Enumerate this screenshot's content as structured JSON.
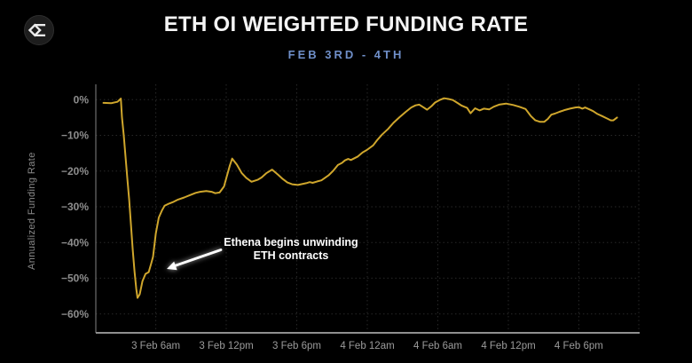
{
  "header": {
    "title": "ETH OI WEIGHTED FUNDING RATE",
    "subtitle": "FEB 3RD - 4TH"
  },
  "annotation": {
    "line1": "Ethena begins unwinding",
    "line2": "ETH contracts"
  },
  "chart_data": {
    "type": "line",
    "title": "ETH OI WEIGHTED FUNDING RATE",
    "subtitle": "FEB 3RD - 4TH",
    "xlabel": "",
    "ylabel": "Annualized Funding Rate",
    "x_unit": "hours since 3 Feb 12am",
    "x_range": [
      0.9,
      47.1
    ],
    "y_range": [
      -65.3,
      4.3
    ],
    "grid": true,
    "legend": false,
    "x_ticks": [
      {
        "value": 6,
        "label": "3 Feb 6am"
      },
      {
        "value": 12,
        "label": "3 Feb 12pm"
      },
      {
        "value": 18,
        "label": "3 Feb 6pm"
      },
      {
        "value": 24,
        "label": "4 Feb 12am"
      },
      {
        "value": 30,
        "label": "4 Feb 6am"
      },
      {
        "value": 36,
        "label": "4 Feb 12pm"
      },
      {
        "value": 42,
        "label": "4 Feb 6pm"
      }
    ],
    "y_ticks": [
      {
        "value": 0,
        "label": "0%"
      },
      {
        "value": -10,
        "label": "−10%"
      },
      {
        "value": -20,
        "label": "−20%"
      },
      {
        "value": -30,
        "label": "−30%"
      },
      {
        "value": -40,
        "label": "−40%"
      },
      {
        "value": -50,
        "label": "−50%"
      },
      {
        "value": -60,
        "label": "−60%"
      }
    ],
    "series": [
      {
        "name": "ETH OI weighted funding rate (annualized %)",
        "color": "#cfa62c",
        "points": [
          [
            1.55,
            -0.9
          ],
          [
            2.2,
            -1.0
          ],
          [
            2.75,
            -0.6
          ],
          [
            3.03,
            0.3
          ],
          [
            3.13,
            -5
          ],
          [
            3.28,
            -10
          ],
          [
            3.43,
            -16
          ],
          [
            3.58,
            -22
          ],
          [
            3.74,
            -28
          ],
          [
            3.89,
            -35
          ],
          [
            4.04,
            -42
          ],
          [
            4.19,
            -48
          ],
          [
            4.34,
            -53
          ],
          [
            4.45,
            -55.5
          ],
          [
            4.64,
            -54.5
          ],
          [
            4.87,
            -50.8
          ],
          [
            5.13,
            -48.8
          ],
          [
            5.4,
            -48.3
          ],
          [
            5.62,
            -45.8
          ],
          [
            5.77,
            -44.0
          ],
          [
            6.0,
            -37.5
          ],
          [
            6.26,
            -33.0
          ],
          [
            6.53,
            -31.0
          ],
          [
            6.75,
            -29.7
          ],
          [
            7.13,
            -29.1
          ],
          [
            7.51,
            -28.6
          ],
          [
            7.89,
            -28.0
          ],
          [
            8.42,
            -27.4
          ],
          [
            8.87,
            -26.8
          ],
          [
            9.4,
            -26.1
          ],
          [
            9.77,
            -25.8
          ],
          [
            10.3,
            -25.6
          ],
          [
            10.75,
            -25.8
          ],
          [
            11.06,
            -26.2
          ],
          [
            11.43,
            -26.0
          ],
          [
            11.81,
            -24.3
          ],
          [
            12.04,
            -21.5
          ],
          [
            12.3,
            -18.5
          ],
          [
            12.5,
            -16.5
          ],
          [
            12.9,
            -18.2
          ],
          [
            13.3,
            -20.5
          ],
          [
            13.7,
            -21.9
          ],
          [
            14.15,
            -23.0
          ],
          [
            14.7,
            -22.4
          ],
          [
            15.0,
            -21.8
          ],
          [
            15.4,
            -20.6
          ],
          [
            15.9,
            -19.6
          ],
          [
            16.4,
            -21.0
          ],
          [
            16.8,
            -22.2
          ],
          [
            17.2,
            -23.2
          ],
          [
            17.6,
            -23.7
          ],
          [
            18.1,
            -23.9
          ],
          [
            18.8,
            -23.4
          ],
          [
            19.1,
            -23.1
          ],
          [
            19.35,
            -23.3
          ],
          [
            19.75,
            -22.9
          ],
          [
            20.1,
            -22.6
          ],
          [
            20.7,
            -21.2
          ],
          [
            21.1,
            -19.9
          ],
          [
            21.5,
            -18.3
          ],
          [
            21.85,
            -17.7
          ],
          [
            22.1,
            -17.0
          ],
          [
            22.38,
            -16.6
          ],
          [
            22.6,
            -16.9
          ],
          [
            23.2,
            -15.9
          ],
          [
            23.6,
            -14.8
          ],
          [
            23.96,
            -14.1
          ],
          [
            24.5,
            -12.8
          ],
          [
            24.87,
            -11.2
          ],
          [
            25.25,
            -9.8
          ],
          [
            25.77,
            -8.2
          ],
          [
            26.23,
            -6.5
          ],
          [
            26.75,
            -4.9
          ],
          [
            27.28,
            -3.4
          ],
          [
            27.74,
            -2.2
          ],
          [
            28.11,
            -1.6
          ],
          [
            28.42,
            -1.4
          ],
          [
            28.79,
            -2.2
          ],
          [
            29.09,
            -2.8
          ],
          [
            29.47,
            -1.8
          ],
          [
            29.77,
            -0.8
          ],
          [
            30.15,
            -0.1
          ],
          [
            30.53,
            0.4
          ],
          [
            30.91,
            0.2
          ],
          [
            31.28,
            -0.1
          ],
          [
            31.66,
            -0.9
          ],
          [
            32.04,
            -1.7
          ],
          [
            32.49,
            -2.3
          ],
          [
            32.79,
            -3.8
          ],
          [
            33.17,
            -2.4
          ],
          [
            33.55,
            -3.0
          ],
          [
            33.92,
            -2.5
          ],
          [
            34.38,
            -2.7
          ],
          [
            34.75,
            -2.0
          ],
          [
            35.21,
            -1.4
          ],
          [
            35.81,
            -1.1
          ],
          [
            36.42,
            -1.5
          ],
          [
            36.94,
            -2.0
          ],
          [
            37.47,
            -2.6
          ],
          [
            37.92,
            -4.6
          ],
          [
            38.3,
            -5.8
          ],
          [
            38.68,
            -6.2
          ],
          [
            39.06,
            -6.2
          ],
          [
            39.36,
            -5.4
          ],
          [
            39.66,
            -4.2
          ],
          [
            39.96,
            -3.9
          ],
          [
            40.34,
            -3.4
          ],
          [
            40.79,
            -2.9
          ],
          [
            41.25,
            -2.5
          ],
          [
            41.7,
            -2.2
          ],
          [
            42.0,
            -2.1
          ],
          [
            42.3,
            -2.5
          ],
          [
            42.53,
            -2.2
          ],
          [
            42.83,
            -2.6
          ],
          [
            43.21,
            -3.2
          ],
          [
            43.58,
            -4.0
          ],
          [
            44.04,
            -4.7
          ],
          [
            44.42,
            -5.3
          ],
          [
            44.72,
            -5.8
          ],
          [
            44.94,
            -5.8
          ],
          [
            45.25,
            -5.0
          ]
        ]
      }
    ],
    "annotation": {
      "text": "Ethena begins unwinding ETH contracts",
      "arrow_points_to": {
        "x_hours": 7.0,
        "y_percent": -47
      }
    },
    "colors": {
      "background": "#000000",
      "line": "#cfa62c",
      "subtitle_accent": "#6f8fc9",
      "grid": "#282828",
      "tick_text": "#9b9b9b"
    }
  }
}
